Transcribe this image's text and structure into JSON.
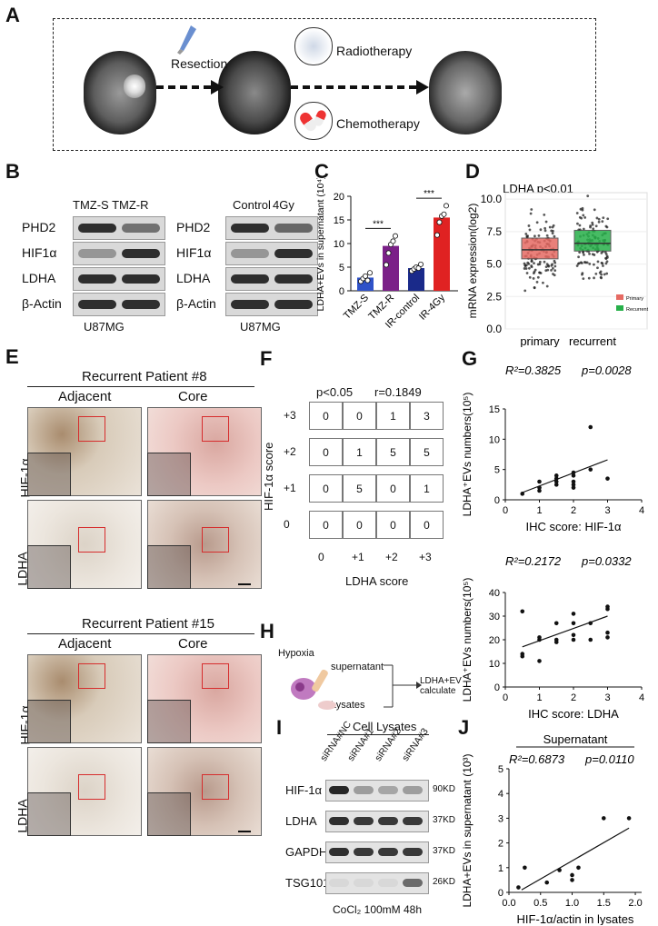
{
  "panels": {
    "A": "A",
    "B": "B",
    "C": "C",
    "D": "D",
    "E": "E",
    "F": "F",
    "G": "G",
    "H": "H",
    "I": "I",
    "J": "J"
  },
  "panelA": {
    "resection": "Resection",
    "radiotherapy": "Radiotherapy",
    "chemotherapy": "Chemotherapy"
  },
  "panelB": {
    "left_header": "TMZ-S  TMZ-R",
    "right_header_1": "Control",
    "right_header_2": "4Gy",
    "proteins": [
      "PHD2",
      "HIF1α",
      "LDHA",
      "β-Actin"
    ],
    "cell_line": "U87MG"
  },
  "chart_data": [
    {
      "type": "bar",
      "panel": "C",
      "categories": [
        "TMZ-S",
        "TMZ-R",
        "IR-control",
        "IR-4Gy"
      ],
      "values": [
        2.8,
        9.5,
        4.8,
        15.5
      ],
      "points": [
        [
          2.0,
          2.6,
          3.1,
          2.2,
          3.8
        ],
        [
          5.5,
          8.0,
          9.8,
          10.5,
          11.6
        ],
        [
          4.2,
          4.6,
          5.0,
          4.8,
          5.6
        ],
        [
          11.8,
          14.5,
          15.8,
          16.2,
          18.0
        ]
      ],
      "colors": [
        "#2f52c8",
        "#7b2088",
        "#1a2a8a",
        "#e02222"
      ],
      "ylabel": "LDHA+EVs in supernatant (10⁴)",
      "yticks": [
        0,
        5,
        10,
        15,
        20
      ],
      "ylim": [
        0,
        20
      ],
      "significance": [
        "***",
        "***"
      ]
    },
    {
      "type": "boxplot",
      "panel": "D",
      "title": "LDHA p<0.01",
      "categories": [
        "primary",
        "recurrent"
      ],
      "median": [
        6.1,
        6.6
      ],
      "q1": [
        5.4,
        6.0
      ],
      "q3": [
        7.0,
        7.6
      ],
      "ylabel": "mRNA expression(log2)",
      "yticks": [
        "0.0",
        "2.5",
        "5.0",
        "7.5",
        "10.0"
      ],
      "ylim": [
        0,
        10.5
      ],
      "legend": [
        "Primary",
        "Recurrent"
      ],
      "colors": [
        "#e66a63",
        "#27b04a"
      ]
    },
    {
      "type": "table",
      "panel": "F",
      "title_left": "p<0.05",
      "title_right": "r=0.1849",
      "row_labels": [
        "+3",
        "+2",
        "+1",
        "0"
      ],
      "col_labels": [
        "0",
        "+1",
        "+2",
        "+3"
      ],
      "values": [
        [
          0,
          0,
          1,
          3
        ],
        [
          0,
          1,
          5,
          5
        ],
        [
          0,
          5,
          0,
          1
        ],
        [
          0,
          0,
          0,
          0
        ]
      ],
      "ylabel": "HIF-1α score",
      "xlabel": "LDHA score"
    },
    {
      "type": "scatter",
      "panel": "G1",
      "stat_r2": "R²=0.3825",
      "stat_p": "p=0.0028",
      "x": [
        0.5,
        1,
        1,
        1,
        1.5,
        1.5,
        1.5,
        1.5,
        2,
        2,
        2,
        2,
        2.5,
        2.5,
        2,
        3
      ],
      "y": [
        1,
        1.5,
        2,
        3,
        2.5,
        3,
        3.5,
        4,
        2,
        3,
        4,
        4.5,
        5,
        12,
        2.5,
        3.5
      ],
      "fit": [
        [
          0.5,
          1.2
        ],
        [
          3,
          6.6
        ]
      ],
      "xticks": [
        0,
        1,
        2,
        3,
        4
      ],
      "yticks": [
        0,
        5,
        10,
        15
      ],
      "xlim": [
        0,
        4
      ],
      "ylim": [
        0,
        15
      ],
      "xlabel": "IHC score: HIF-1α",
      "ylabel": "LDHA⁺EVs numbers(10⁵)"
    },
    {
      "type": "scatter",
      "panel": "G2",
      "stat_r2": "R²=0.2172",
      "stat_p": "p=0.0332",
      "x": [
        0.5,
        0.5,
        0.5,
        1,
        1,
        1,
        1.5,
        1.5,
        2,
        2,
        2,
        2.5,
        2.5,
        3,
        3,
        3,
        3,
        2,
        1.5
      ],
      "y": [
        32,
        14,
        13,
        11,
        20,
        21,
        20,
        27,
        20,
        27,
        31,
        20,
        27,
        21,
        23,
        33,
        34,
        22,
        19
      ],
      "fit": [
        [
          0.5,
          17
        ],
        [
          3,
          30
        ]
      ],
      "xticks": [
        0,
        1,
        2,
        3,
        4
      ],
      "yticks": [
        0,
        10,
        20,
        30,
        40
      ],
      "xlim": [
        0,
        4
      ],
      "ylim": [
        0,
        40
      ],
      "xlabel": "IHC score: LDHA",
      "ylabel": "LDHA⁺EVs numbers(10⁵)"
    },
    {
      "type": "scatter",
      "panel": "J",
      "title": "Supernatant",
      "stat_r2": "R²=0.6873",
      "stat_p": "p=0.0110",
      "x": [
        0.15,
        0.25,
        0.6,
        0.8,
        1.0,
        1.0,
        1.1,
        1.5,
        1.9
      ],
      "y": [
        0.2,
        1.0,
        0.4,
        0.9,
        0.5,
        0.7,
        1.0,
        3.0,
        3.0
      ],
      "fit": [
        [
          0.2,
          0.1
        ],
        [
          1.9,
          2.6
        ]
      ],
      "xticks": [
        "0.0",
        "0.5",
        "1.0",
        "1.5",
        "2.0"
      ],
      "yticks": [
        0,
        1,
        2,
        3,
        4,
        5
      ],
      "xlim": [
        0,
        2.1
      ],
      "ylim": [
        0,
        5
      ],
      "xlabel": "HIF-1α/actin in lysates",
      "ylabel": "LDHA+EVs in supernatant (10³)"
    }
  ],
  "panelE": {
    "patient1": "Recurrent Patient #8",
    "patient2": "Recurrent Patient #15",
    "adjacent": "Adjacent",
    "core": "Core",
    "row1": "HIF-1α",
    "row2": "LDHA"
  },
  "panelH": {
    "hypoxia": "Hypoxia",
    "supernatant": "supernatant",
    "lysates": "Lysates",
    "result": "LDHA+EV calculate"
  },
  "panelI": {
    "header": "Cell Lysates",
    "lanes": [
      "siRNA#NC",
      "siRNA#1",
      "siRNA#2",
      "siRNA#3"
    ],
    "proteins": [
      "HIF-1α",
      "LDHA",
      "GAPDH",
      "TSG101"
    ],
    "sizes": [
      "90KD",
      "37KD",
      "37KD",
      "26KD"
    ],
    "footer": "CoCl₂ 100mM 48h"
  }
}
